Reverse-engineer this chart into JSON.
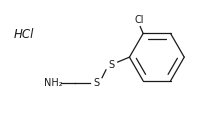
{
  "background_color": "#ffffff",
  "figsize": [
    2.08,
    1.29
  ],
  "dpi": 100,
  "hcl_text": "HCl",
  "hcl_fontsize": 8.5,
  "nh2_text": "NH₂",
  "nh2_fontsize": 7,
  "cl_text": "Cl",
  "cl_fontsize": 7,
  "s1_text": "S",
  "s1_fontsize": 7,
  "s2_text": "S",
  "s2_fontsize": 7,
  "line_color": "#1a1a1a",
  "line_width": 0.9
}
